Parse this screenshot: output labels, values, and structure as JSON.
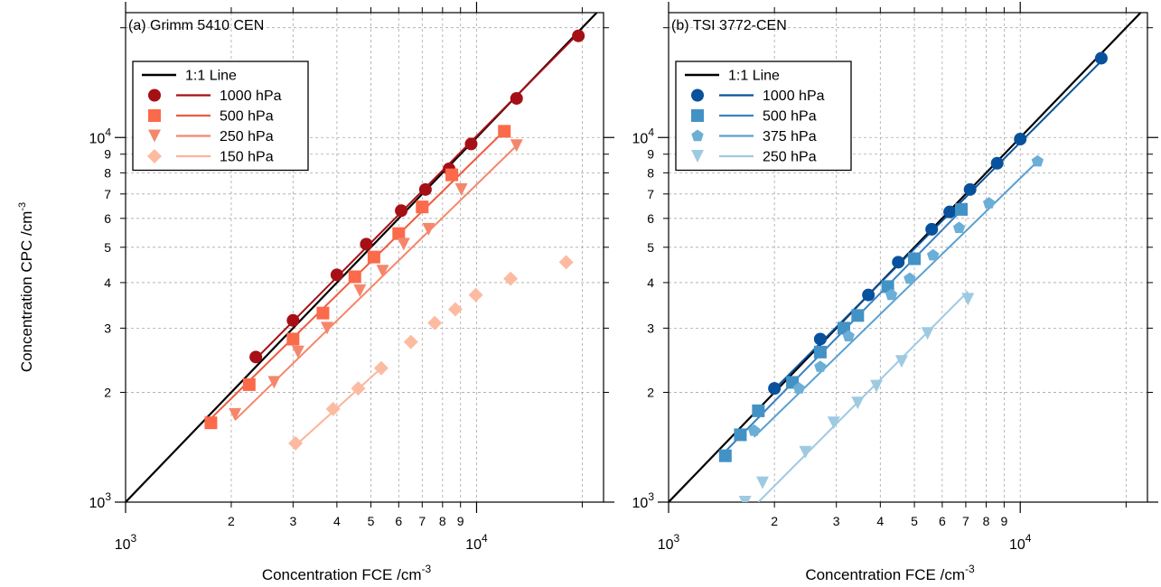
{
  "y_axis_title": "Concentration CPC /cm",
  "y_axis_title_exp": "-3",
  "chart_data": [
    {
      "type": "scatter",
      "title": "(a) Grimm 5410 CEN",
      "xlabel": "Concentration FCE /cm",
      "xlabel_exp": "-3",
      "ylabel": "Concentration CPC /cm",
      "ylabel_exp": "-3",
      "xscale": "log",
      "yscale": "log",
      "xlim": [
        1000,
        23000
      ],
      "ylim": [
        1000,
        22000
      ],
      "grid": true,
      "legend_position": "top-left",
      "x_major_tick": "10",
      "x_major_exp": "3",
      "x_major_tick_2": "10",
      "x_major_exp_2": "4",
      "y_major_tick": "10",
      "y_major_exp": "3",
      "y_major_tick_2": "10",
      "y_major_exp_2": "4",
      "x_minor_labels": [
        "2",
        "3",
        "4",
        "5",
        "6",
        "7",
        "8",
        "9"
      ],
      "y_minor_labels": [
        "2",
        "3",
        "4",
        "5",
        "6",
        "7",
        "8",
        "9"
      ],
      "one_to_one": {
        "name": "1:1 Line",
        "color": "#000000"
      },
      "series": [
        {
          "name": "1000 hPa",
          "marker": "circle",
          "color": "#a50f15",
          "line_color": "#a50f15",
          "x": [
            2350,
            3000,
            4000,
            4850,
            6100,
            7150,
            8350,
            9650,
            13000,
            19500
          ],
          "y": [
            2500,
            3150,
            4200,
            5100,
            6300,
            7200,
            8200,
            9600,
            12800,
            19000
          ],
          "fit": [
            [
              2350,
              2470
            ],
            [
              19500,
              19300
            ]
          ]
        },
        {
          "name": "500 hPa",
          "marker": "square",
          "color": "#fb6a4a",
          "line_color": "#ef5a3e",
          "x": [
            1750,
            2250,
            3000,
            3650,
            4500,
            5100,
            6000,
            7000,
            8500,
            12000
          ],
          "y": [
            1650,
            2100,
            2800,
            3300,
            4150,
            4700,
            5450,
            6450,
            7900,
            10400
          ],
          "fit": [
            [
              1700,
              1650
            ],
            [
              12200,
              10600
            ]
          ]
        },
        {
          "name": "250 hPa",
          "marker": "triangle-down",
          "color": "#f4876b",
          "line_color": "#f4876b",
          "x": [
            2050,
            2650,
            3100,
            3750,
            4650,
            5400,
            6200,
            7300,
            9050,
            13000
          ],
          "y": [
            1740,
            2130,
            2580,
            3000,
            3800,
            4300,
            5100,
            5600,
            7200,
            9500
          ],
          "fit": [
            [
              2050,
              1680
            ],
            [
              13000,
              9500
            ]
          ]
        },
        {
          "name": "150 hPa",
          "marker": "diamond",
          "color": "#fcbba1",
          "line_color": "#fcb49a",
          "x": [
            3050,
            3900,
            4600,
            5350,
            6500,
            7600,
            8700,
            9950,
            12500,
            18000
          ],
          "y": [
            1450,
            1800,
            2050,
            2330,
            2750,
            3100,
            3380,
            3700,
            4100,
            4550
          ],
          "fit": [
            [
              3050,
              1430
            ],
            [
              5350,
              2330
            ]
          ]
        }
      ]
    },
    {
      "type": "scatter",
      "title": "(b) TSI 3772-CEN",
      "xlabel": "Concentration FCE /cm",
      "xlabel_exp": "-3",
      "xscale": "log",
      "yscale": "log",
      "xlim": [
        1000,
        23000
      ],
      "ylim": [
        1000,
        22000
      ],
      "grid": true,
      "legend_position": "top-left",
      "x_major_tick": "10",
      "x_major_exp": "3",
      "x_major_tick_2": "10",
      "x_major_exp_2": "4",
      "y_major_tick": "10",
      "y_major_exp": "3",
      "y_major_tick_2": "10",
      "y_major_exp_2": "4",
      "x_minor_labels": [
        "2",
        "3",
        "4",
        "5",
        "6",
        "7",
        "8",
        "9"
      ],
      "y_minor_labels": [
        "2",
        "3",
        "4",
        "5",
        "6",
        "7",
        "8",
        "9"
      ],
      "one_to_one": {
        "name": "1:1 Line",
        "color": "#000000"
      },
      "series": [
        {
          "name": "1000 hPa",
          "marker": "circle",
          "color": "#08519c",
          "line_color": "#08519c",
          "x": [
            2000,
            2700,
            3700,
            4500,
            5600,
            6300,
            7200,
            8600,
            10000,
            17000
          ],
          "y": [
            2050,
            2800,
            3700,
            4550,
            5600,
            6250,
            7200,
            8500,
            9900,
            16500
          ],
          "fit": [
            [
              2000,
              2040
            ],
            [
              17000,
              16200
            ]
          ]
        },
        {
          "name": "500 hPa",
          "marker": "square",
          "color": "#4292c6",
          "line_color": "#3a82c0",
          "x": [
            1450,
            1600,
            1800,
            2250,
            2700,
            3150,
            3450,
            4200,
            5000,
            6800
          ],
          "y": [
            1340,
            1530,
            1780,
            2130,
            2580,
            3000,
            3250,
            3900,
            4650,
            6350
          ],
          "fit": [
            [
              1400,
              1330
            ],
            [
              6900,
              6400
            ]
          ]
        },
        {
          "name": "375 hPa",
          "marker": "pentagon",
          "color": "#6baed6",
          "line_color": "#5aa0d0",
          "x": [
            1750,
            2350,
            2700,
            3250,
            4300,
            4850,
            5650,
            6700,
            8150,
            11200
          ],
          "y": [
            1570,
            2050,
            2350,
            2850,
            3700,
            4100,
            4750,
            5650,
            6600,
            8600
          ],
          "fit": [
            [
              1750,
              1510
            ],
            [
              11200,
              8600
            ]
          ]
        },
        {
          "name": "250 hPa",
          "marker": "triangle-down",
          "color": "#9ecae1",
          "line_color": "#9ecae1",
          "x": [
            1650,
            1850,
            2450,
            2950,
            3450,
            3900,
            4600,
            5450,
            7100
          ],
          "y": [
            1000,
            1130,
            1370,
            1650,
            1870,
            2080,
            2430,
            2900,
            3600
          ],
          "fit": [
            [
              1800,
              1000
            ],
            [
              7100,
              3780
            ]
          ]
        }
      ]
    }
  ]
}
